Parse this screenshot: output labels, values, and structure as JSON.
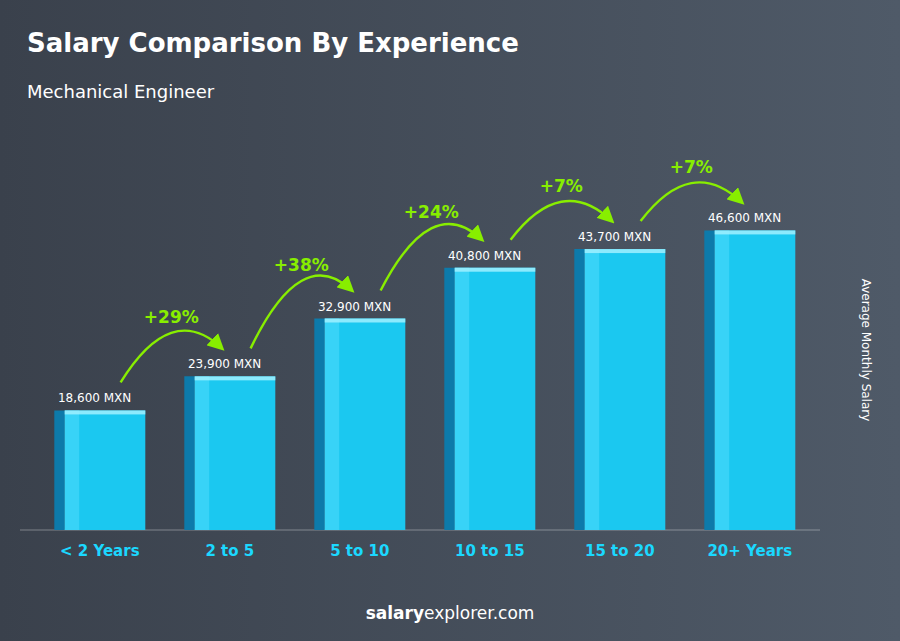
{
  "chart_data": {
    "type": "bar",
    "title": "Salary Comparison By Experience",
    "subtitle": "Mechanical Engineer",
    "y_label": "Average Monthly Salary",
    "categories": [
      "< 2 Years",
      "2 to 5",
      "5 to 10",
      "10 to 15",
      "15 to 20",
      "20+ Years"
    ],
    "values": [
      18600,
      23900,
      32900,
      40800,
      43700,
      46600
    ],
    "value_labels": [
      "18,600 MXN",
      "23,900 MXN",
      "32,900 MXN",
      "40,800 MXN",
      "43,700 MXN",
      "46,600 MXN"
    ],
    "data_labels": true,
    "annotations": [
      "+29%",
      "+38%",
      "+24%",
      "+7%",
      "+7%",
      "salary",
      "explorer.com"
    ],
    "color": "#1bc8f0",
    "ylim": [
      0,
      56000
    ],
    "tick_labels": "x",
    "grid": false
  }
}
